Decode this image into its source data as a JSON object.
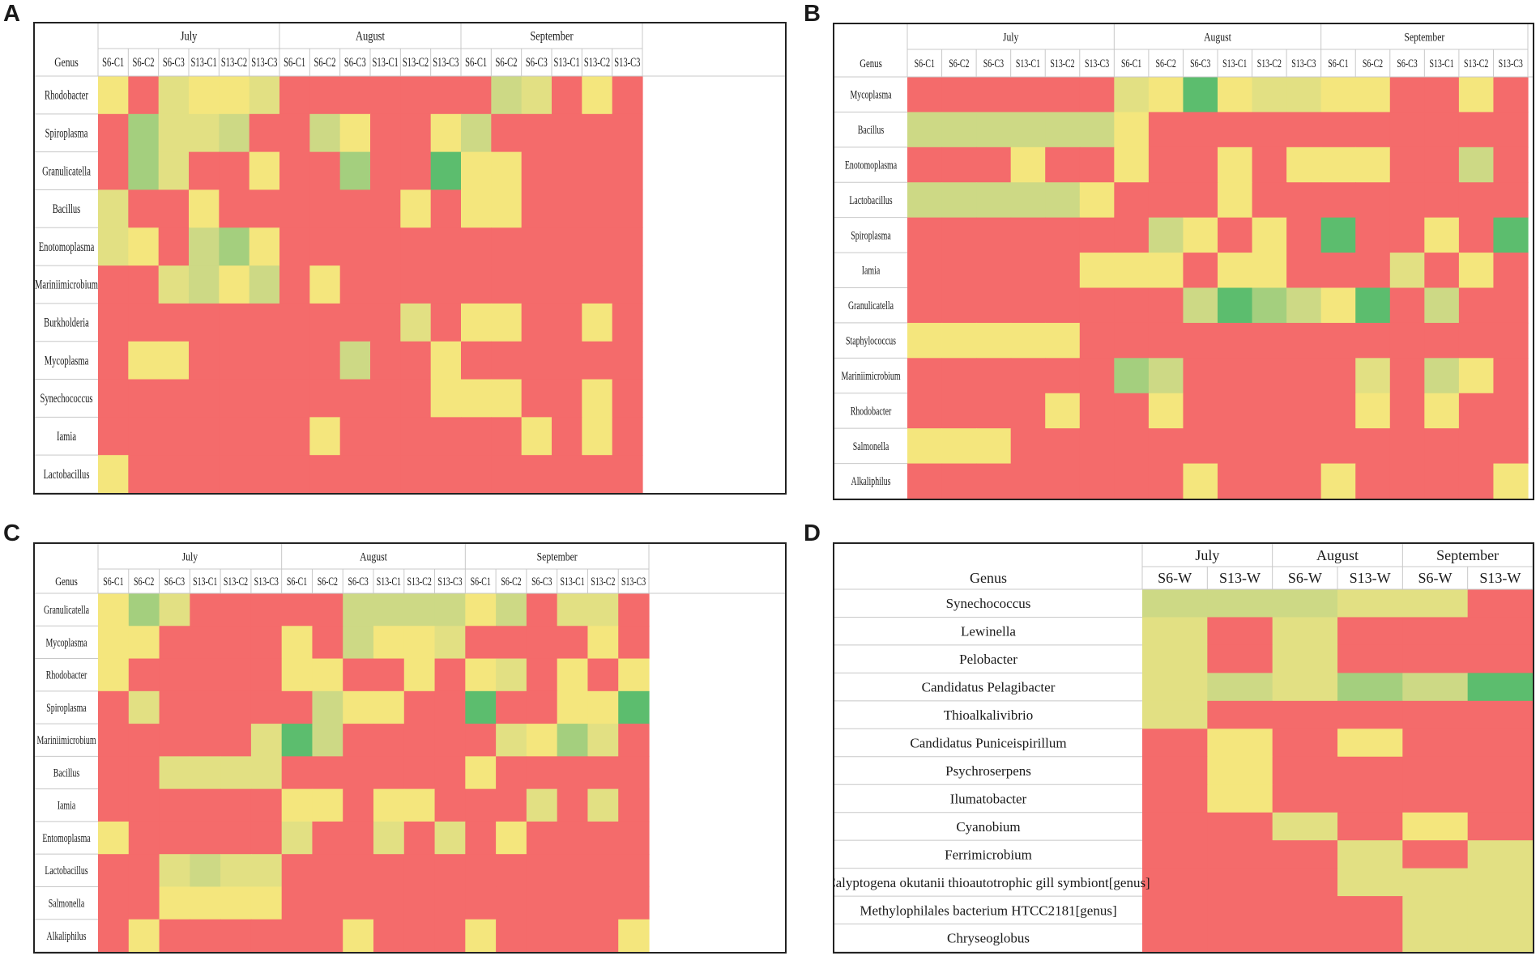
{
  "chart_data": [
    {
      "panel": "A",
      "type": "heatmap",
      "months": [
        "July",
        "August",
        "September"
      ],
      "genus_label": "Genus",
      "columns": [
        "S6-C1",
        "S6-C2",
        "S6-C3",
        "S13-C1",
        "S13-C2",
        "S13-C3",
        "S6-C1",
        "S6-C2",
        "S6-C3",
        "S13-C1",
        "S13-C2",
        "S13-C3",
        "S6-C1",
        "S6-C2",
        "S6-C3",
        "S13-C1",
        "S13-C2",
        "S13-C3"
      ],
      "columns_per_month": 6,
      "color_scale": [
        "#f46b6b",
        "#f4e67d",
        "#e2e083",
        "#cdd985",
        "#a4cf7e",
        "#5cbd6e"
      ],
      "rows": [
        {
          "genus": "Rhodobacter",
          "values": [
            1,
            0,
            2,
            1,
            1,
            2,
            0,
            0,
            0,
            0,
            0,
            0,
            0,
            3,
            2,
            0,
            1,
            0
          ]
        },
        {
          "genus": "Spiroplasma",
          "values": [
            0,
            4,
            2,
            2,
            3,
            0,
            0,
            3,
            1,
            0,
            0,
            1,
            3,
            0,
            0,
            0,
            0,
            0
          ]
        },
        {
          "genus": "Granulicatella",
          "values": [
            0,
            4,
            2,
            0,
            0,
            1,
            0,
            0,
            4,
            0,
            0,
            5,
            1,
            1,
            0,
            0,
            0,
            0
          ]
        },
        {
          "genus": "Bacillus",
          "values": [
            2,
            0,
            0,
            1,
            0,
            0,
            0,
            0,
            0,
            0,
            1,
            0,
            1,
            1,
            0,
            0,
            0,
            0
          ]
        },
        {
          "genus": "Enotomoplasma",
          "values": [
            2,
            1,
            0,
            3,
            4,
            1,
            0,
            0,
            0,
            0,
            0,
            0,
            0,
            0,
            0,
            0,
            0,
            0
          ]
        },
        {
          "genus": "Mariniimicrobium",
          "values": [
            0,
            0,
            2,
            3,
            1,
            3,
            0,
            1,
            0,
            0,
            0,
            0,
            0,
            0,
            0,
            0,
            0,
            0
          ]
        },
        {
          "genus": "Burkholderia",
          "values": [
            0,
            0,
            0,
            0,
            0,
            0,
            0,
            0,
            0,
            0,
            2,
            0,
            1,
            1,
            0,
            0,
            1,
            0
          ]
        },
        {
          "genus": "Mycoplasma",
          "values": [
            0,
            1,
            1,
            0,
            0,
            0,
            0,
            0,
            3,
            0,
            0,
            1,
            0,
            0,
            0,
            0,
            0,
            0
          ]
        },
        {
          "genus": "Synechococcus",
          "values": [
            0,
            0,
            0,
            0,
            0,
            0,
            0,
            0,
            0,
            0,
            0,
            1,
            1,
            1,
            0,
            0,
            1,
            0
          ]
        },
        {
          "genus": "Iamia",
          "values": [
            0,
            0,
            0,
            0,
            0,
            0,
            0,
            1,
            0,
            0,
            0,
            0,
            0,
            0,
            1,
            0,
            1,
            0
          ]
        },
        {
          "genus": "Lactobacillus",
          "values": [
            1,
            0,
            0,
            0,
            0,
            0,
            0,
            0,
            0,
            0,
            0,
            0,
            0,
            0,
            0,
            0,
            0,
            0
          ]
        }
      ]
    },
    {
      "panel": "B",
      "type": "heatmap",
      "months": [
        "July",
        "August",
        "September"
      ],
      "genus_label": "Genus",
      "columns": [
        "S6-C1",
        "S6-C2",
        "S6-C3",
        "S13-C1",
        "S13-C2",
        "S13-C3",
        "S6-C1",
        "S6-C2",
        "S6-C3",
        "S13-C1",
        "S13-C2",
        "S13-C3",
        "S6-C1",
        "S6-C2",
        "S6-C3",
        "S13-C1",
        "S13-C2",
        "S13-C3"
      ],
      "columns_per_month": 6,
      "color_scale": [
        "#f46b6b",
        "#f4e67d",
        "#e2e083",
        "#cdd985",
        "#a4cf7e",
        "#5cbd6e"
      ],
      "rows": [
        {
          "genus": "Mycoplasma",
          "values": [
            0,
            0,
            0,
            0,
            0,
            0,
            2,
            1,
            5,
            1,
            2,
            2,
            1,
            1,
            0,
            0,
            1,
            0
          ]
        },
        {
          "genus": "Bacillus",
          "values": [
            3,
            3,
            3,
            3,
            3,
            3,
            1,
            0,
            0,
            0,
            0,
            0,
            0,
            0,
            0,
            0,
            0,
            0
          ]
        },
        {
          "genus": "Enotomoplasma",
          "values": [
            0,
            0,
            0,
            1,
            0,
            0,
            1,
            0,
            0,
            1,
            0,
            1,
            1,
            1,
            0,
            0,
            3,
            0
          ]
        },
        {
          "genus": "Lactobacillus",
          "values": [
            3,
            3,
            3,
            3,
            3,
            1,
            0,
            0,
            0,
            1,
            0,
            0,
            0,
            0,
            0,
            0,
            0,
            0
          ]
        },
        {
          "genus": "Spiroplasma",
          "values": [
            0,
            0,
            0,
            0,
            0,
            0,
            0,
            3,
            1,
            0,
            1,
            0,
            5,
            0,
            0,
            1,
            0,
            5
          ]
        },
        {
          "genus": "Iamia",
          "values": [
            0,
            0,
            0,
            0,
            0,
            1,
            1,
            1,
            0,
            1,
            1,
            0,
            0,
            0,
            2,
            0,
            1,
            0
          ]
        },
        {
          "genus": "Granulicatella",
          "values": [
            0,
            0,
            0,
            0,
            0,
            0,
            0,
            0,
            3,
            5,
            4,
            3,
            1,
            5,
            0,
            3,
            0,
            0
          ]
        },
        {
          "genus": "Staphylococcus",
          "values": [
            1,
            1,
            1,
            1,
            1,
            0,
            0,
            0,
            0,
            0,
            0,
            0,
            0,
            0,
            0,
            0,
            0,
            0
          ]
        },
        {
          "genus": "Mariniimicrobium",
          "values": [
            0,
            0,
            0,
            0,
            0,
            0,
            4,
            3,
            0,
            0,
            0,
            0,
            0,
            2,
            0,
            3,
            1,
            0
          ]
        },
        {
          "genus": "Rhodobacter",
          "values": [
            0,
            0,
            0,
            0,
            1,
            0,
            0,
            1,
            0,
            0,
            0,
            0,
            0,
            1,
            0,
            1,
            0,
            0
          ]
        },
        {
          "genus": "Salmonella",
          "values": [
            1,
            1,
            1,
            0,
            0,
            0,
            0,
            0,
            0,
            0,
            0,
            0,
            0,
            0,
            0,
            0,
            0,
            0
          ]
        },
        {
          "genus": "Alkaliphilus",
          "values": [
            0,
            0,
            0,
            0,
            0,
            0,
            0,
            0,
            1,
            0,
            0,
            0,
            1,
            0,
            0,
            0,
            0,
            1
          ]
        }
      ]
    },
    {
      "panel": "C",
      "type": "heatmap",
      "months": [
        "July",
        "August",
        "September"
      ],
      "genus_label": "Genus",
      "columns": [
        "S6-C1",
        "S6-C2",
        "S6-C3",
        "S13-C1",
        "S13-C2",
        "S13-C3",
        "S6-C1",
        "S6-C2",
        "S6-C3",
        "S13-C1",
        "S13-C2",
        "S13-C3",
        "S6-C1",
        "S6-C2",
        "S6-C3",
        "S13-C1",
        "S13-C2",
        "S13-C3"
      ],
      "columns_per_month": 6,
      "color_scale": [
        "#f46b6b",
        "#f4e67d",
        "#e2e083",
        "#cdd985",
        "#a4cf7e",
        "#5cbd6e"
      ],
      "rows": [
        {
          "genus": "Granulicatella",
          "values": [
            1,
            4,
            2,
            0,
            0,
            0,
            0,
            0,
            3,
            3,
            3,
            3,
            1,
            3,
            0,
            2,
            2,
            0
          ]
        },
        {
          "genus": "Mycoplasma",
          "values": [
            1,
            1,
            0,
            0,
            0,
            0,
            1,
            0,
            3,
            1,
            1,
            2,
            0,
            0,
            0,
            0,
            1,
            0
          ]
        },
        {
          "genus": "Rhodobacter",
          "values": [
            1,
            0,
            0,
            0,
            0,
            0,
            1,
            1,
            0,
            0,
            1,
            0,
            1,
            2,
            0,
            1,
            0,
            1
          ]
        },
        {
          "genus": "Spiroplasma",
          "values": [
            0,
            2,
            0,
            0,
            0,
            0,
            0,
            3,
            1,
            1,
            0,
            0,
            5,
            0,
            0,
            1,
            1,
            5
          ]
        },
        {
          "genus": "Mariniimicrobium",
          "values": [
            0,
            0,
            0,
            0,
            0,
            2,
            5,
            3,
            0,
            0,
            0,
            0,
            0,
            2,
            1,
            4,
            2,
            0
          ]
        },
        {
          "genus": "Bacillus",
          "values": [
            0,
            0,
            2,
            2,
            2,
            2,
            0,
            0,
            0,
            0,
            0,
            0,
            1,
            0,
            0,
            0,
            0,
            0
          ]
        },
        {
          "genus": "Iamia",
          "values": [
            0,
            0,
            0,
            0,
            0,
            0,
            1,
            1,
            0,
            1,
            1,
            0,
            0,
            0,
            2,
            0,
            2,
            0
          ]
        },
        {
          "genus": "Entomoplasma",
          "values": [
            1,
            0,
            0,
            0,
            0,
            0,
            2,
            0,
            0,
            2,
            0,
            2,
            0,
            1,
            0,
            0,
            0,
            0
          ]
        },
        {
          "genus": "Lactobacillus",
          "values": [
            0,
            0,
            2,
            3,
            2,
            2,
            0,
            0,
            0,
            0,
            0,
            0,
            0,
            0,
            0,
            0,
            0,
            0
          ]
        },
        {
          "genus": "Salmonella",
          "values": [
            0,
            0,
            1,
            1,
            1,
            1,
            0,
            0,
            0,
            0,
            0,
            0,
            0,
            0,
            0,
            0,
            0,
            0
          ]
        },
        {
          "genus": "Alkaliphilus",
          "values": [
            0,
            1,
            0,
            0,
            0,
            0,
            0,
            0,
            1,
            0,
            0,
            0,
            1,
            0,
            0,
            0,
            0,
            1
          ]
        }
      ]
    },
    {
      "panel": "D",
      "type": "heatmap",
      "months": [
        "July",
        "August",
        "September"
      ],
      "genus_label": "Genus",
      "columns": [
        "S6-W",
        "S13-W",
        "S6-W",
        "S13-W",
        "S6-W",
        "S13-W"
      ],
      "columns_per_month": 2,
      "color_scale": [
        "#f46b6b",
        "#f4e67d",
        "#e2e083",
        "#cdd985",
        "#a4cf7e",
        "#5cbd6e"
      ],
      "rows": [
        {
          "genus": "Synechococcus",
          "values": [
            3,
            3,
            3,
            2,
            2,
            0
          ]
        },
        {
          "genus": "Lewinella",
          "values": [
            2,
            0,
            2,
            0,
            0,
            0
          ]
        },
        {
          "genus": "Pelobacter",
          "values": [
            2,
            0,
            2,
            0,
            0,
            0
          ]
        },
        {
          "genus": "Candidatus Pelagibacter",
          "values": [
            2,
            3,
            2,
            4,
            3,
            5
          ]
        },
        {
          "genus": "Thioalkalivibrio",
          "values": [
            2,
            0,
            0,
            0,
            0,
            0
          ]
        },
        {
          "genus": "Candidatus Puniceispirillum",
          "values": [
            0,
            1,
            0,
            1,
            0,
            0
          ]
        },
        {
          "genus": "Psychroserpens",
          "values": [
            0,
            1,
            0,
            0,
            0,
            0
          ]
        },
        {
          "genus": "Ilumatobacter",
          "values": [
            0,
            1,
            0,
            0,
            0,
            0
          ]
        },
        {
          "genus": "Cyanobium",
          "values": [
            0,
            0,
            2,
            0,
            1,
            0
          ]
        },
        {
          "genus": "Ferrimicrobium",
          "values": [
            0,
            0,
            0,
            2,
            0,
            2
          ]
        },
        {
          "genus": "Calyptogena okutanii thioautotrophic gill symbiont[genus]",
          "values": [
            0,
            0,
            0,
            2,
            2,
            2
          ]
        },
        {
          "genus": "Methylophilales bacterium HTCC2181[genus]",
          "values": [
            0,
            0,
            0,
            0,
            2,
            2
          ]
        },
        {
          "genus": "Chryseoglobus",
          "values": [
            0,
            0,
            0,
            0,
            2,
            2
          ]
        }
      ]
    }
  ]
}
